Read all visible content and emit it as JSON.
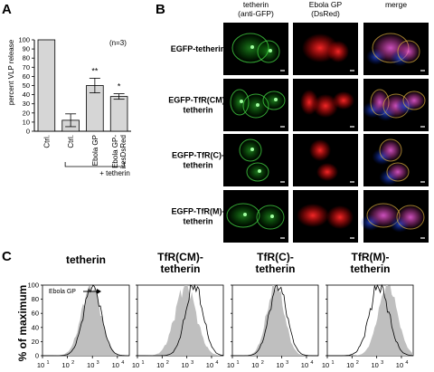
{
  "panel_a": {
    "letter": "A",
    "ylabel": "percent VLP release",
    "n_label": "(n=3)",
    "bracket_label": "+ tetherin",
    "chart_data": {
      "type": "bar",
      "categories": [
        "Ctrl.",
        "Ctrl.",
        "Ebola GP",
        "Ebola GP-iresDsRed"
      ],
      "category_lines": [
        [
          "Ctrl."
        ],
        [
          "Ctrl."
        ],
        [
          "Ebola GP"
        ],
        [
          "Ebola GP-",
          "iresDsRed"
        ]
      ],
      "values": [
        100,
        12,
        50,
        38
      ],
      "errors": [
        0,
        7,
        8,
        3
      ],
      "significance": [
        "",
        "",
        "**",
        "*"
      ],
      "ylim": [
        0,
        100
      ],
      "yticks": [
        0,
        10,
        20,
        30,
        40,
        50,
        60,
        70,
        80,
        90,
        100
      ],
      "ylabel": "percent VLP release",
      "bar_color": "#d6d6d6"
    }
  },
  "panel_b": {
    "letter": "B",
    "column_headers": [
      [
        "tetherin",
        "(anti-GFP)"
      ],
      [
        "Ebola GP",
        "(DsRed)"
      ],
      [
        "merge"
      ]
    ],
    "rows": [
      {
        "label": [
          "EGFP-tetherin"
        ]
      },
      {
        "label": [
          "EGFP-TfR(CM)-",
          "tetherin"
        ]
      },
      {
        "label": [
          "EGFP-TfR(C)-",
          "tetherin"
        ]
      },
      {
        "label": [
          "EGFP-TfR(M)-",
          "tetherin"
        ]
      }
    ]
  },
  "panel_c": {
    "letter": "C",
    "ylabel": "% of maximum",
    "legend_label": "Ebola GP",
    "plots": [
      {
        "title": [
          "tetherin"
        ]
      },
      {
        "title": [
          "TfR(CM)-",
          "tetherin"
        ]
      },
      {
        "title": [
          "TfR(C)-",
          "tetherin"
        ]
      },
      {
        "title": [
          "TfR(M)-",
          "tetherin"
        ]
      }
    ],
    "chart_data": {
      "type": "area",
      "ylabel": "% of maximum",
      "ylim": [
        0,
        100
      ],
      "yticks": [
        0,
        20,
        40,
        60,
        80,
        100
      ],
      "x_scale": "log",
      "xlim": [
        10,
        30000
      ],
      "xticks": [
        "10^1",
        "10^2",
        "10^3",
        "10^4"
      ],
      "series": [
        {
          "name": "Ebola GP",
          "style": "line"
        },
        {
          "style": "filled-gray"
        }
      ]
    }
  }
}
